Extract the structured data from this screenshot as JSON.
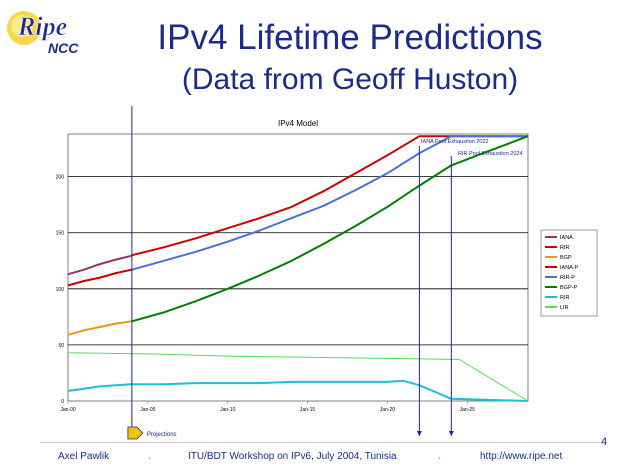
{
  "slide": {
    "logo": {
      "word": "Ripe",
      "sub": "NCC"
    },
    "title": "IPv4 Lifetime Predictions",
    "subtitle": "(Data from Geoff Huston)",
    "page_number": "4",
    "annotation": "Projections"
  },
  "footer": {
    "author": "Axel Pawlik",
    "event": "ITU/BDT Workshop on IPv6, July 2004, Tunisia",
    "url": "http://www.ripe.net",
    "separator": "."
  },
  "colors": {
    "title": "#1b2b8c",
    "IANA": "#993366",
    "RIR": "#cc0000",
    "BGP": "#e69a10",
    "IANA-P": "#cc0000",
    "RIR-P": "#4a6fdc",
    "BGP-P": "#008000",
    "RIR-low": "#19c0d8",
    "LIR": "#55dd55",
    "marker": "#1b2b8c"
  },
  "chart_data": {
    "type": "line",
    "title": "IPv4 Model",
    "x_ticks": [
      {
        "x": 2000,
        "label": "Jan-00"
      },
      {
        "x": 2005,
        "label": "Jan-05"
      },
      {
        "x": 2010,
        "label": "Jan-10"
      },
      {
        "x": 2015,
        "label": "Jan-15"
      },
      {
        "x": 2020,
        "label": "Jan-20"
      },
      {
        "x": 2025,
        "label": "Jan-25"
      }
    ],
    "xlim": [
      2000,
      2028.8
    ],
    "y_ticks": [
      {
        "y": 0,
        "label": "0"
      },
      {
        "y": 50,
        "label": "50"
      },
      {
        "y": 100,
        "label": "100"
      },
      {
        "y": 150,
        "label": "150"
      },
      {
        "y": 200,
        "label": "200"
      }
    ],
    "ylim": [
      0,
      238
    ],
    "grid": true,
    "legend_position": "right",
    "series": [
      {
        "name": "IANA",
        "color_key": "IANA",
        "points": [
          [
            2000,
            113
          ],
          [
            2001,
            117
          ],
          [
            2002,
            122
          ],
          [
            2003,
            126
          ],
          [
            2004,
            129.5
          ]
        ]
      },
      {
        "name": "RIR",
        "color_key": "RIR",
        "points": [
          [
            2000,
            103
          ],
          [
            2001,
            107
          ],
          [
            2002,
            110
          ],
          [
            2003,
            114
          ],
          [
            2004,
            117
          ]
        ]
      },
      {
        "name": "BGP",
        "color_key": "BGP",
        "points": [
          [
            2000,
            59
          ],
          [
            2001,
            63
          ],
          [
            2002,
            66
          ],
          [
            2003,
            69
          ],
          [
            2004,
            71
          ]
        ]
      },
      {
        "name": "IANA-P",
        "color_key": "IANA-P",
        "points": [
          [
            2004,
            130
          ],
          [
            2006,
            137
          ],
          [
            2008,
            145
          ],
          [
            2010,
            154
          ],
          [
            2012,
            163
          ],
          [
            2014,
            173
          ],
          [
            2016,
            187
          ],
          [
            2018,
            203
          ],
          [
            2020,
            219
          ],
          [
            2022,
            236
          ],
          [
            2028.8,
            236
          ]
        ]
      },
      {
        "name": "RIR-P",
        "color_key": "RIR-P",
        "points": [
          [
            2004,
            117
          ],
          [
            2006,
            125
          ],
          [
            2008,
            133
          ],
          [
            2010,
            142
          ],
          [
            2012,
            152
          ],
          [
            2014,
            163
          ],
          [
            2016,
            174
          ],
          [
            2018,
            188
          ],
          [
            2020,
            203
          ],
          [
            2022,
            221
          ],
          [
            2024,
            236
          ],
          [
            2028.8,
            236
          ]
        ]
      },
      {
        "name": "BGP-P",
        "color_key": "BGP-P",
        "points": [
          [
            2004,
            71
          ],
          [
            2006,
            79
          ],
          [
            2008,
            89
          ],
          [
            2010,
            100
          ],
          [
            2012,
            112
          ],
          [
            2014,
            125
          ],
          [
            2016,
            140
          ],
          [
            2018,
            156
          ],
          [
            2020,
            173
          ],
          [
            2022,
            192
          ],
          [
            2024,
            210
          ],
          [
            2026,
            221
          ],
          [
            2028.8,
            236
          ]
        ]
      },
      {
        "name": "RIR",
        "color_key": "RIR-low",
        "points": [
          [
            2000,
            9
          ],
          [
            2001,
            11
          ],
          [
            2002,
            13
          ],
          [
            2003,
            14
          ],
          [
            2004,
            15
          ],
          [
            2006,
            15
          ],
          [
            2008,
            16
          ],
          [
            2010,
            16
          ],
          [
            2012,
            16
          ],
          [
            2014,
            17
          ],
          [
            2016,
            17
          ],
          [
            2018,
            17
          ],
          [
            2020,
            17
          ],
          [
            2021,
            18
          ],
          [
            2022,
            14
          ],
          [
            2023,
            8
          ],
          [
            2024,
            2
          ],
          [
            2028.8,
            0
          ]
        ]
      },
      {
        "name": "LIR",
        "color_key": "LIR",
        "points": [
          [
            2000,
            43
          ],
          [
            2005,
            42
          ],
          [
            2010,
            40
          ],
          [
            2015,
            39
          ],
          [
            2020,
            38
          ],
          [
            2024.5,
            37
          ],
          [
            2028.8,
            0
          ]
        ]
      }
    ],
    "annotations": [
      {
        "text": "IANA Pool Exhaustion 2022",
        "x": 2022
      },
      {
        "text": "RIR Pool Exhaustion 2024",
        "x": 2024
      }
    ],
    "marker_years": [
      2004,
      2022,
      2024
    ]
  }
}
